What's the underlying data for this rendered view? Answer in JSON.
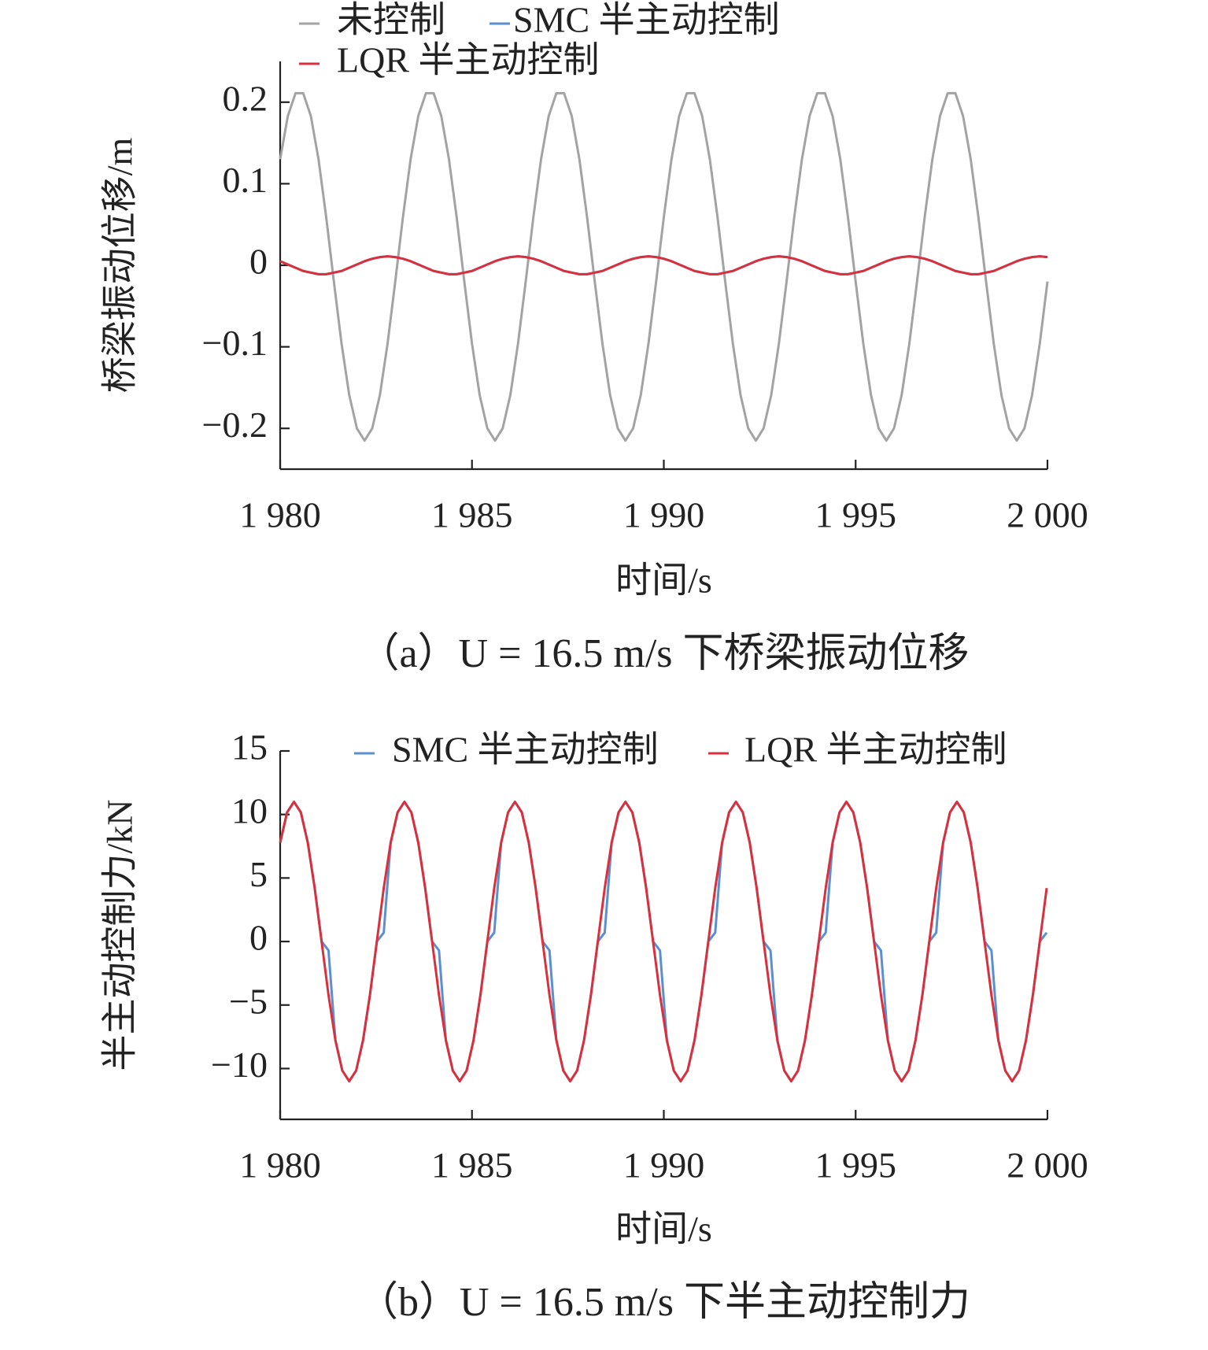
{
  "chart_data": [
    {
      "type": "line",
      "x": [
        1980,
        1980.2,
        1980.4,
        1980.6,
        1980.8,
        1981,
        1981.2,
        1981.4,
        1981.6,
        1981.8,
        1982,
        1982.2,
        1982.4,
        1982.6,
        1982.8,
        1983,
        1983.2,
        1983.4,
        1983.6,
        1983.8,
        1984,
        1984.2,
        1984.4,
        1984.6,
        1984.8,
        1985,
        1985.2,
        1985.4,
        1985.6,
        1985.8,
        1986,
        1986.2,
        1986.4,
        1986.6,
        1986.8,
        1987,
        1987.2,
        1987.4,
        1987.6,
        1987.8,
        1988,
        1988.2,
        1988.4,
        1988.6,
        1988.8,
        1989,
        1989.2,
        1989.4,
        1989.6,
        1989.8,
        1990,
        1990.2,
        1990.4,
        1990.6,
        1990.8,
        1991,
        1991.2,
        1991.4,
        1991.6,
        1991.8,
        1992,
        1992.2,
        1992.4,
        1992.6,
        1992.8,
        1993,
        1993.2,
        1993.4,
        1993.6,
        1993.8,
        1994,
        1994.2,
        1994.4,
        1994.6,
        1994.8,
        1995,
        1995.2,
        1995.4,
        1995.6,
        1995.8,
        1996,
        1996.2,
        1996.4,
        1996.6,
        1996.8,
        1997,
        1997.2,
        1997.4,
        1997.6,
        1997.8,
        1998,
        1998.2,
        1998.4,
        1998.6,
        1998.8,
        1999,
        1999.2,
        1999.4,
        1999.6,
        1999.8,
        2000
      ],
      "series": [
        {
          "name": "未控制",
          "color": "#a3a3a3",
          "values": [
            0.13,
            0.183,
            0.211,
            0.211,
            0.183,
            0.13,
            0.059,
            -0.02,
            -0.096,
            -0.159,
            -0.2,
            -0.215,
            -0.2,
            -0.159,
            -0.096,
            -0.02,
            0.059,
            0.13,
            0.183,
            0.211,
            0.211,
            0.183,
            0.13,
            0.059,
            -0.02,
            -0.096,
            -0.159,
            -0.2,
            -0.215,
            -0.2,
            -0.159,
            -0.096,
            -0.02,
            0.059,
            0.13,
            0.183,
            0.211,
            0.211,
            0.183,
            0.13,
            0.059,
            -0.02,
            -0.096,
            -0.159,
            -0.2,
            -0.215,
            -0.2,
            -0.159,
            -0.096,
            -0.02,
            0.059,
            0.13,
            0.183,
            0.211,
            0.211,
            0.183,
            0.13,
            0.059,
            -0.02,
            -0.096,
            -0.159,
            -0.2,
            -0.215,
            -0.2,
            -0.159,
            -0.096,
            -0.02,
            0.059,
            0.13,
            0.183,
            0.211,
            0.211,
            0.183,
            0.13,
            0.059,
            -0.02,
            -0.096,
            -0.159,
            -0.2,
            -0.215,
            -0.2,
            -0.159,
            -0.096,
            -0.02,
            0.059,
            0.13,
            0.183,
            0.211,
            0.211,
            0.183,
            0.13,
            0.059,
            -0.02,
            -0.096,
            -0.159,
            -0.2,
            -0.215,
            -0.2,
            -0.159,
            -0.096,
            -0.02
          ]
        },
        {
          "name": "SMC 半主动控制",
          "color": "#5b8fd0",
          "values": [
            0.005,
            0.001,
            -0.003,
            -0.007,
            -0.009,
            -0.011,
            -0.011,
            -0.009,
            -0.007,
            -0.003,
            0.001,
            0.005,
            0.008,
            0.01,
            0.011,
            0.01,
            0.008,
            0.005,
            0.001,
            -0.003,
            -0.007,
            -0.009,
            -0.011,
            -0.011,
            -0.009,
            -0.007,
            -0.003,
            0.001,
            0.005,
            0.008,
            0.01,
            0.011,
            0.01,
            0.008,
            0.005,
            0.001,
            -0.003,
            -0.007,
            -0.009,
            -0.011,
            -0.011,
            -0.009,
            -0.007,
            -0.003,
            0.001,
            0.005,
            0.008,
            0.01,
            0.011,
            0.01,
            0.008,
            0.005,
            0.001,
            -0.003,
            -0.007,
            -0.009,
            -0.011,
            -0.011,
            -0.009,
            -0.007,
            -0.003,
            0.001,
            0.005,
            0.008,
            0.01,
            0.011,
            0.01,
            0.008,
            0.005,
            0.001,
            -0.003,
            -0.007,
            -0.009,
            -0.011,
            -0.011,
            -0.009,
            -0.007,
            -0.003,
            0.001,
            0.005,
            0.008,
            0.01,
            0.011,
            0.01,
            0.008,
            0.005,
            0.001,
            -0.003,
            -0.007,
            -0.009,
            -0.011,
            -0.011,
            -0.009,
            -0.007,
            -0.003,
            0.001,
            0.005,
            0.008,
            0.01,
            0.011,
            0.01
          ]
        },
        {
          "name": "LQR 半主动控制",
          "color": "#d8303c",
          "values": [
            0.005,
            0.001,
            -0.003,
            -0.007,
            -0.009,
            -0.011,
            -0.011,
            -0.009,
            -0.007,
            -0.003,
            0.001,
            0.005,
            0.008,
            0.01,
            0.011,
            0.01,
            0.008,
            0.005,
            0.001,
            -0.003,
            -0.007,
            -0.009,
            -0.011,
            -0.011,
            -0.009,
            -0.007,
            -0.003,
            0.001,
            0.005,
            0.008,
            0.01,
            0.011,
            0.01,
            0.008,
            0.005,
            0.001,
            -0.003,
            -0.007,
            -0.009,
            -0.011,
            -0.011,
            -0.009,
            -0.007,
            -0.003,
            0.001,
            0.005,
            0.008,
            0.01,
            0.011,
            0.01,
            0.008,
            0.005,
            0.001,
            -0.003,
            -0.007,
            -0.009,
            -0.011,
            -0.011,
            -0.009,
            -0.007,
            -0.003,
            0.001,
            0.005,
            0.008,
            0.01,
            0.011,
            0.01,
            0.008,
            0.005,
            0.001,
            -0.003,
            -0.007,
            -0.009,
            -0.011,
            -0.011,
            -0.009,
            -0.007,
            -0.003,
            0.001,
            0.005,
            0.008,
            0.01,
            0.011,
            0.01,
            0.008,
            0.005,
            0.001,
            -0.003,
            -0.007,
            -0.009,
            -0.011,
            -0.011,
            -0.009,
            -0.007,
            -0.003,
            0.001,
            0.005,
            0.008,
            0.01,
            0.011,
            0.01
          ]
        }
      ],
      "xlim": [
        1980,
        2000
      ],
      "ylim": [
        -0.25,
        0.25
      ],
      "xticks": [
        {
          "value": 1980,
          "label": "1 980"
        },
        {
          "value": 1985,
          "label": "1 985"
        },
        {
          "value": 1990,
          "label": "1 990"
        },
        {
          "value": 1995,
          "label": "1 995"
        },
        {
          "value": 2000,
          "label": "2 000"
        }
      ],
      "yticks": [
        0.2,
        0.1,
        0,
        {
          "value": -0.1,
          "label": "−0.1"
        },
        {
          "value": -0.2,
          "label": "−0.2"
        }
      ],
      "x_label": "时间/s",
      "y_label": "桥梁振动位移/m",
      "caption": "（a）U = 16.5 m/s 下桥梁振动位移"
    },
    {
      "type": "line",
      "x": [
        1980,
        1980.18,
        1980.36,
        1980.54,
        1980.72,
        1980.9,
        1981.08,
        1981.26,
        1981.44,
        1981.62,
        1981.8,
        1981.98,
        1982.16,
        1982.34,
        1982.52,
        1982.7,
        1982.88,
        1983.06,
        1983.24,
        1983.42,
        1983.6,
        1983.78,
        1983.96,
        1984.14,
        1984.32,
        1984.5,
        1984.68,
        1984.86,
        1985.04,
        1985.22,
        1985.4,
        1985.58,
        1985.76,
        1985.94,
        1986.12,
        1986.3,
        1986.48,
        1986.66,
        1986.84,
        1987.02,
        1987.2,
        1987.38,
        1987.56,
        1987.74,
        1987.92,
        1988.1,
        1988.28,
        1988.46,
        1988.64,
        1988.82,
        1989,
        1989.18,
        1989.36,
        1989.54,
        1989.72,
        1989.9,
        1990.08,
        1990.26,
        1990.44,
        1990.62,
        1990.8,
        1990.98,
        1991.16,
        1991.34,
        1991.52,
        1991.7,
        1991.88,
        1992.06,
        1992.24,
        1992.42,
        1992.6,
        1992.78,
        1992.96,
        1993.14,
        1993.32,
        1993.5,
        1993.68,
        1993.86,
        1994.04,
        1994.22,
        1994.4,
        1994.58,
        1994.76,
        1994.94,
        1995.12,
        1995.3,
        1995.48,
        1995.66,
        1995.84,
        1996.02,
        1996.2,
        1996.38,
        1996.56,
        1996.74,
        1996.92,
        1997.1,
        1997.28,
        1997.46,
        1997.64,
        1997.82,
        1998,
        1998.18,
        1998.36,
        1998.54,
        1998.72,
        1998.9,
        1999.08,
        1999.26,
        1999.44,
        1999.62,
        1999.8,
        1999.98
      ],
      "series": [
        {
          "name": "SMC 半主动控制",
          "color": "#5b8fd0",
          "values": [
            7.78,
            10.16,
            11,
            10.16,
            7.78,
            4.21,
            0,
            -0.7,
            -7.78,
            -10.16,
            -11,
            -10.16,
            -7.78,
            -4.21,
            0,
            0.7,
            7.78,
            10.16,
            11,
            10.16,
            7.78,
            4.21,
            0,
            -0.7,
            -7.78,
            -10.16,
            -11,
            -10.16,
            -7.78,
            -4.21,
            0,
            0.7,
            7.78,
            10.16,
            11,
            10.16,
            7.78,
            4.21,
            0,
            -0.7,
            -7.78,
            -10.16,
            -11,
            -10.16,
            -7.78,
            -4.21,
            0,
            0.7,
            7.78,
            10.16,
            11,
            10.16,
            7.78,
            4.21,
            0,
            -0.7,
            -7.78,
            -10.16,
            -11,
            -10.16,
            -7.78,
            -4.21,
            0,
            0.7,
            7.78,
            10.16,
            11,
            10.16,
            7.78,
            4.21,
            0,
            -0.7,
            -7.78,
            -10.16,
            -11,
            -10.16,
            -7.78,
            -4.21,
            0,
            0.7,
            7.78,
            10.16,
            11,
            10.16,
            7.78,
            4.21,
            0,
            -0.7,
            -7.78,
            -10.16,
            -11,
            -10.16,
            -7.78,
            -4.21,
            0,
            0.7,
            7.78,
            10.16,
            11,
            10.16,
            7.78,
            4.21,
            0,
            -0.7,
            -7.78,
            -10.16,
            -11,
            -10.16,
            -7.78,
            -4.21,
            0,
            0.7
          ]
        },
        {
          "name": "LQR 半主动控制",
          "color": "#d8303c",
          "values": [
            7.78,
            10.16,
            11,
            10.16,
            7.78,
            4.21,
            0,
            -4.21,
            -7.78,
            -10.16,
            -11,
            -10.16,
            -7.78,
            -4.21,
            0,
            4.21,
            7.78,
            10.16,
            11,
            10.16,
            7.78,
            4.21,
            0,
            -4.21,
            -7.78,
            -10.16,
            -11,
            -10.16,
            -7.78,
            -4.21,
            0,
            4.21,
            7.78,
            10.16,
            11,
            10.16,
            7.78,
            4.21,
            0,
            -4.21,
            -7.78,
            -10.16,
            -11,
            -10.16,
            -7.78,
            -4.21,
            0,
            4.21,
            7.78,
            10.16,
            11,
            10.16,
            7.78,
            4.21,
            0,
            -4.21,
            -7.78,
            -10.16,
            -11,
            -10.16,
            -7.78,
            -4.21,
            0,
            4.21,
            7.78,
            10.16,
            11,
            10.16,
            7.78,
            4.21,
            0,
            -4.21,
            -7.78,
            -10.16,
            -11,
            -10.16,
            -7.78,
            -4.21,
            0,
            4.21,
            7.78,
            10.16,
            11,
            10.16,
            7.78,
            4.21,
            0,
            -4.21,
            -7.78,
            -10.16,
            -11,
            -10.16,
            -7.78,
            -4.21,
            0,
            4.21,
            7.78,
            10.16,
            11,
            10.16,
            7.78,
            4.21,
            0,
            -4.21,
            -7.78,
            -10.16,
            -11,
            -10.16,
            -7.78,
            -4.21,
            0,
            4.21
          ]
        }
      ],
      "xlim": [
        1980,
        2000
      ],
      "ylim": [
        -14,
        15
      ],
      "xticks": [
        {
          "value": 1980,
          "label": "1 980"
        },
        {
          "value": 1985,
          "label": "1 985"
        },
        {
          "value": 1990,
          "label": "1 990"
        },
        {
          "value": 1995,
          "label": "1 995"
        },
        {
          "value": 2000,
          "label": "2 000"
        }
      ],
      "yticks": [
        15,
        10,
        5,
        0,
        {
          "value": -5,
          "label": "−5"
        },
        {
          "value": -10,
          "label": "−10"
        }
      ],
      "x_label": "时间/s",
      "y_label": "半主动控制力/kN",
      "caption": "（b）U = 16.5 m/s 下半主动控制力"
    }
  ]
}
